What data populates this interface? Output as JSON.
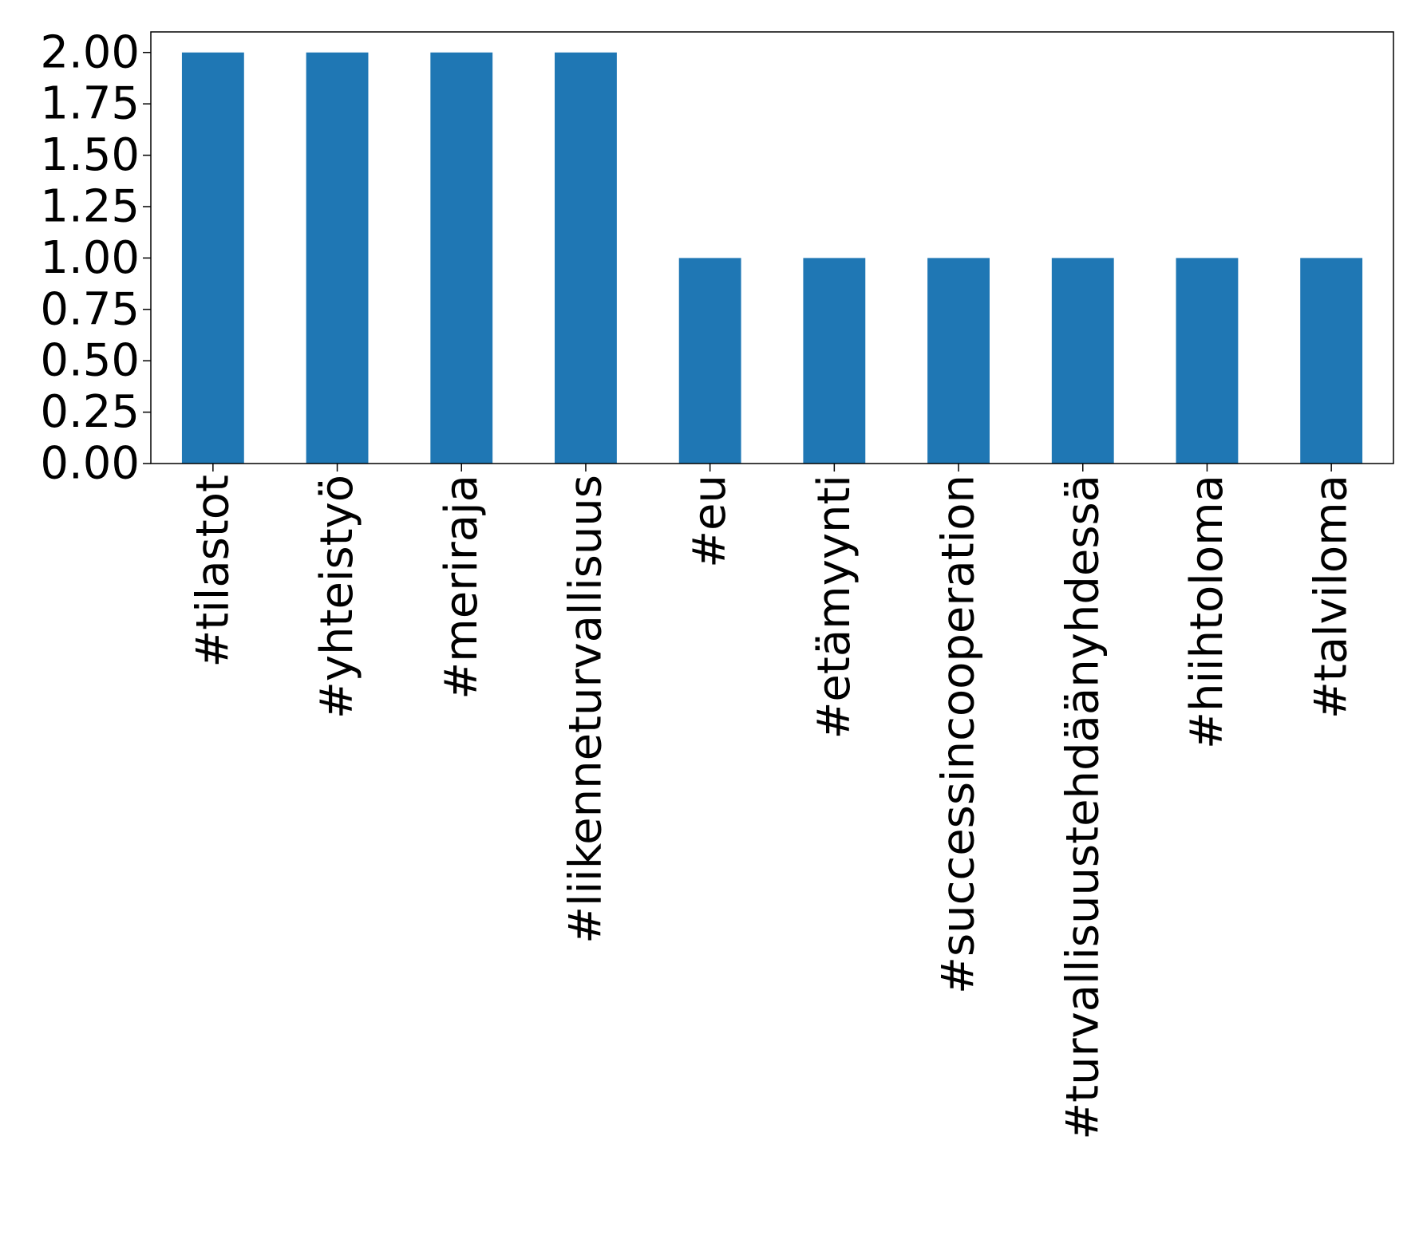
{
  "chart_data": {
    "type": "bar",
    "title": "",
    "xlabel": "",
    "ylabel": "",
    "categories": [
      "#tilastot",
      "#yhteistyö",
      "#meriraja",
      "#liikenneturvallisuus",
      "#eu",
      "#etämyynti",
      "#successincooperation",
      "#turvallisuustehdäänyhdessä",
      "#hiihtoloma",
      "#talviloma"
    ],
    "values": [
      2,
      2,
      2,
      2,
      1,
      1,
      1,
      1,
      1,
      1
    ],
    "ylim": [
      0,
      2.1
    ],
    "yticks": [
      "0.00",
      "0.25",
      "0.50",
      "0.75",
      "1.00",
      "1.25",
      "1.50",
      "1.75",
      "2.00"
    ],
    "bar_color": "#1f77b4",
    "grid": false,
    "legend": "none",
    "x_tick_rotation": "vertical"
  }
}
